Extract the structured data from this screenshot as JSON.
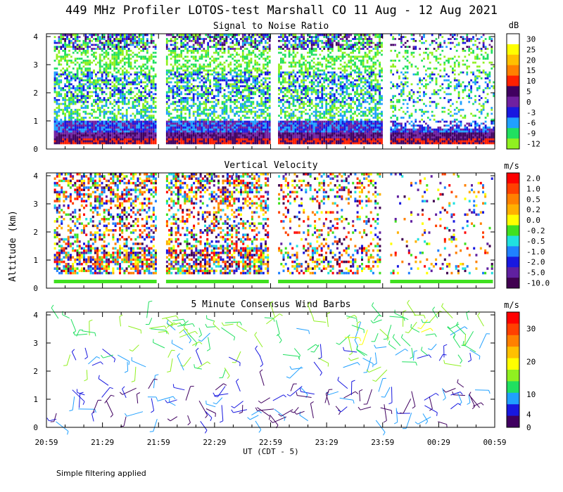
{
  "title": "449 MHz Profiler LOTOS-test Marshall CO 11 Aug - 12 Aug 2021",
  "footnote": "Simple filtering applied",
  "ylabel": "Altitude (km)",
  "xlabel": "UT (CDT - 5)",
  "x_ticks": [
    "20:59",
    "21:29",
    "21:59",
    "22:29",
    "22:59",
    "23:29",
    "23:59",
    "00:29",
    "00:59"
  ],
  "y_ticks": [
    "0",
    "1",
    "2",
    "3",
    "4"
  ],
  "chart_data": [
    {
      "type": "heatmap",
      "title": "Signal to Noise Ratio",
      "unit": "dB",
      "xlabel": "UT (CDT - 5)",
      "ylabel": "Altitude (km)",
      "ylim": [
        0,
        4.1
      ],
      "xlim_minutes": [
        0,
        240
      ],
      "data_segments_minutes": [
        [
          4,
          59
        ],
        [
          64,
          119
        ],
        [
          124,
          179
        ],
        [
          184,
          239
        ]
      ],
      "colorbar_labels": [
        "30",
        "25",
        "20",
        "15",
        "10",
        "5",
        "0",
        "-3",
        "-6",
        "-9",
        "-12"
      ],
      "colors": [
        "#ffffff",
        "#ffff00",
        "#ffc000",
        "#ff8000",
        "#ff2000",
        "#400060",
        "#7020a0",
        "#1818e0",
        "#20a0ff",
        "#20e060",
        "#90f020"
      ]
    },
    {
      "type": "heatmap",
      "title": "Vertical Velocity",
      "unit": "m/s",
      "ylim": [
        0,
        4.1
      ],
      "xlim_minutes": [
        0,
        240
      ],
      "colorbar_labels": [
        "2.0",
        "1.0",
        "0.5",
        "0.2",
        "0.0",
        "-0.2",
        "-0.5",
        "-1.0",
        "-2.0",
        "-5.0",
        "-10.0"
      ],
      "colors": [
        "#ff0000",
        "#ff4000",
        "#ff8000",
        "#ffb000",
        "#ffff00",
        "#40e020",
        "#20e0e0",
        "#2080ff",
        "#1818e0",
        "#6020a0",
        "#400050"
      ]
    },
    {
      "type": "scatter",
      "title": "5 Minute Consensus Wind Barbs",
      "unit": "m/s",
      "ylim": [
        0,
        4.1
      ],
      "xlim_minutes": [
        0,
        240
      ],
      "colorbar_labels": [
        "30",
        "20",
        "10",
        "4",
        "0"
      ],
      "colorbar_label_values": [
        30,
        20,
        10,
        4,
        0
      ],
      "colorbar_max": 35,
      "colors": [
        "#ff0000",
        "#ff4000",
        "#ff8000",
        "#ffc000",
        "#ffff00",
        "#90f020",
        "#20e060",
        "#20a0ff",
        "#1818e0",
        "#400060"
      ]
    }
  ]
}
